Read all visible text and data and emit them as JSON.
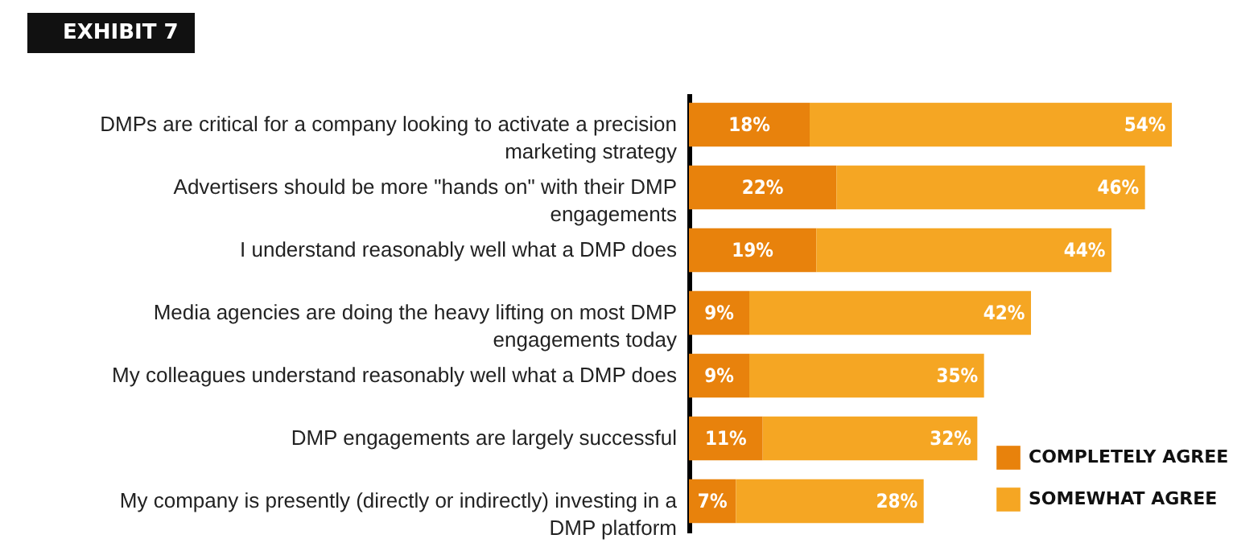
{
  "chart_data": {
    "type": "bar",
    "orientation": "horizontal",
    "stacked": true,
    "title": "EXHIBIT 7",
    "categories": [
      "DMPs are critical for a company looking to activate a precision marketing strategy",
      "Advertisers should be more \"hands on\" with their DMP engagements",
      "I understand reasonably well what a DMP does",
      "Media agencies are doing the heavy lifting on most DMP engagements today",
      "My colleagues understand reasonably well what a DMP does",
      "DMP engagements are largely successful",
      "My company is presently (directly or indirectly) investing in a DMP platform"
    ],
    "series": [
      {
        "name": "COMPLETELY AGREE",
        "color": "#e8820c",
        "values": [
          18,
          22,
          19,
          9,
          9,
          11,
          7
        ],
        "value_labels": [
          "18%",
          "22%",
          "19%",
          "9%",
          "9%",
          "11%",
          "7%"
        ]
      },
      {
        "name": "SOMEWHAT AGREE",
        "color": "#f5a623",
        "values": [
          54,
          46,
          44,
          42,
          35,
          32,
          28
        ],
        "value_labels": [
          "54%",
          "46%",
          "44%",
          "42%",
          "35%",
          "32%",
          "28%"
        ]
      }
    ],
    "legend": "bottom right"
  }
}
